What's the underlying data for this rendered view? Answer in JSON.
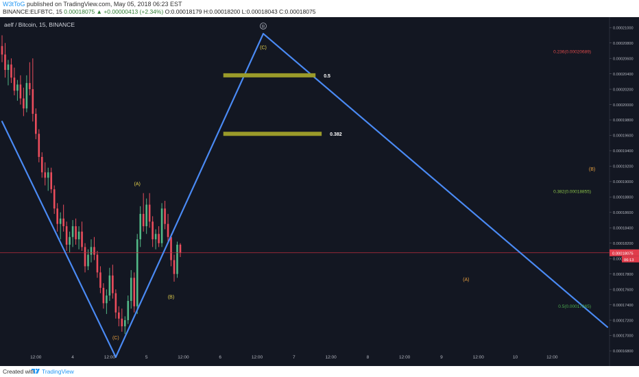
{
  "header": {
    "author": "W3tToG",
    "publish_text": " published on TradingView.com, May 05, 2018 06:23 EST",
    "symbol_line": "BINANCE:ELFBTC, 15  ",
    "change_text": "0.00018075 ▲ +0.00000413 (+2.34%)",
    "ohlc_text": " O:0.00018179 H:0.00018200 L:0.00018043 C:0.00018075"
  },
  "chart_title": "aelf / Bitcoin, 15, BINANCE",
  "colors": {
    "background": "#131722",
    "up": "#53b987",
    "down": "#eb4d5c",
    "wave_line": "#4a8af4",
    "fib_bar": "#9a9a2a",
    "price_line": "#c0303e"
  },
  "chart_data": {
    "type": "candlestick",
    "y_axis": {
      "range": [
        0.000168,
        0.000211
      ],
      "tick_labels": [
        "0.00021000",
        "0.00020800",
        "0.00020600",
        "0.00020400",
        "0.00020200",
        "0.00020000",
        "0.00019800",
        "0.00019600",
        "0.00019400",
        "0.00019200",
        "0.00019000",
        "0.00018800",
        "0.00018600",
        "0.00018400",
        "0.00018200",
        "0.00018000",
        "0.00017800",
        "0.00017600",
        "0.00017400",
        "0.00017200",
        "0.00017000",
        "0.00016800"
      ],
      "tick_values": [
        0.00021,
        0.000208,
        0.000206,
        0.000204,
        0.000202,
        0.0002,
        0.000198,
        0.000196,
        0.000194,
        0.000192,
        0.00019,
        0.000188,
        0.000186,
        0.000184,
        0.000182,
        0.00018,
        0.000178,
        0.000176,
        0.000174,
        0.000172,
        0.00017,
        0.000168
      ]
    },
    "x_axis": {
      "tick_labels": [
        "12:00",
        "4",
        "12:00",
        "5",
        "12:00",
        "6",
        "12:00",
        "7",
        "12:00",
        "8",
        "12:00",
        "9",
        "12:00",
        "10",
        "12:00"
      ],
      "tick_times_hours": [
        12,
        24,
        36,
        48,
        60,
        72,
        84,
        96,
        108,
        120,
        132,
        144,
        156,
        168,
        180
      ],
      "range_hours": [
        1,
        198
      ]
    },
    "candles": [
      {
        "t": 1,
        "o": 0.0002076,
        "h": 0.000209,
        "l": 0.0002055,
        "c": 0.0002065
      },
      {
        "t": 2,
        "o": 0.0002065,
        "h": 0.000208,
        "l": 0.0002035,
        "c": 0.0002045
      },
      {
        "t": 3,
        "o": 0.0002045,
        "h": 0.0002058,
        "l": 0.0002025,
        "c": 0.0002052
      },
      {
        "t": 4,
        "o": 0.0002052,
        "h": 0.000206,
        "l": 0.0002028,
        "c": 0.0002035
      },
      {
        "t": 5,
        "o": 0.0002035,
        "h": 0.0002048,
        "l": 0.0002012,
        "c": 0.0002018
      },
      {
        "t": 6,
        "o": 0.0002018,
        "h": 0.0002032,
        "l": 0.0002005,
        "c": 0.0002026
      },
      {
        "t": 7,
        "o": 0.0002026,
        "h": 0.0002038,
        "l": 0.0002,
        "c": 0.0002008
      },
      {
        "t": 8,
        "o": 0.0002008,
        "h": 0.0002022,
        "l": 0.0001985,
        "c": 0.0001995
      },
      {
        "t": 9,
        "o": 0.0001995,
        "h": 0.0002038,
        "l": 0.000199,
        "c": 0.0002028
      },
      {
        "t": 10,
        "o": 0.0002028,
        "h": 0.0002055,
        "l": 0.0002012,
        "c": 0.000202
      },
      {
        "t": 11,
        "o": 0.000202,
        "h": 0.000206,
        "l": 0.0001978,
        "c": 0.0001988
      },
      {
        "t": 12,
        "o": 0.0001988,
        "h": 0.0001995,
        "l": 0.0001955,
        "c": 0.0001962
      },
      {
        "t": 13,
        "o": 0.0001962,
        "h": 0.0001968,
        "l": 0.0001925,
        "c": 0.0001932
      },
      {
        "t": 14,
        "o": 0.0001932,
        "h": 0.0001938,
        "l": 0.0001905,
        "c": 0.0001912
      },
      {
        "t": 15,
        "o": 0.0001912,
        "h": 0.0001925,
        "l": 0.0001895,
        "c": 0.0001905
      },
      {
        "t": 16,
        "o": 0.0001905,
        "h": 0.0001918,
        "l": 0.0001888,
        "c": 0.0001912
      },
      {
        "t": 17,
        "o": 0.0001912,
        "h": 0.0001918,
        "l": 0.0001885,
        "c": 0.000189
      },
      {
        "t": 18,
        "o": 0.000189,
        "h": 0.0001895,
        "l": 0.0001858,
        "c": 0.0001865
      },
      {
        "t": 19,
        "o": 0.0001865,
        "h": 0.0001872,
        "l": 0.0001835,
        "c": 0.0001845
      },
      {
        "t": 20,
        "o": 0.0001845,
        "h": 0.000186,
        "l": 0.0001825,
        "c": 0.0001852
      },
      {
        "t": 21,
        "o": 0.0001852,
        "h": 0.000187,
        "l": 0.0001835,
        "c": 0.0001842
      },
      {
        "t": 22,
        "o": 0.0001842,
        "h": 0.0001848,
        "l": 0.000181,
        "c": 0.0001818
      },
      {
        "t": 23,
        "o": 0.0001818,
        "h": 0.0001835,
        "l": 0.0001808,
        "c": 0.0001828
      },
      {
        "t": 24,
        "o": 0.0001828,
        "h": 0.000185,
        "l": 0.0001815,
        "c": 0.0001842
      },
      {
        "t": 25,
        "o": 0.0001842,
        "h": 0.0001852,
        "l": 0.0001818,
        "c": 0.0001825
      },
      {
        "t": 26,
        "o": 0.0001825,
        "h": 0.0001842,
        "l": 0.0001812,
        "c": 0.0001835
      },
      {
        "t": 27,
        "o": 0.0001835,
        "h": 0.0001848,
        "l": 0.000181,
        "c": 0.0001815
      },
      {
        "t": 28,
        "o": 0.0001815,
        "h": 0.000182,
        "l": 0.0001782,
        "c": 0.000179
      },
      {
        "t": 29,
        "o": 0.000179,
        "h": 0.0001812,
        "l": 0.0001785,
        "c": 0.0001805
      },
      {
        "t": 30,
        "o": 0.0001805,
        "h": 0.0001825,
        "l": 0.0001795,
        "c": 0.0001815
      },
      {
        "t": 31,
        "o": 0.0001815,
        "h": 0.0001828,
        "l": 0.0001798,
        "c": 0.0001805
      },
      {
        "t": 32,
        "o": 0.0001805,
        "h": 0.000181,
        "l": 0.0001775,
        "c": 0.0001782
      },
      {
        "t": 33,
        "o": 0.0001782,
        "h": 0.000179,
        "l": 0.0001755,
        "c": 0.0001762
      },
      {
        "t": 34,
        "o": 0.0001762,
        "h": 0.0001768,
        "l": 0.0001735,
        "c": 0.0001742
      },
      {
        "t": 35,
        "o": 0.0001742,
        "h": 0.000176,
        "l": 0.0001728,
        "c": 0.0001752
      },
      {
        "t": 36,
        "o": 0.0001752,
        "h": 0.0001788,
        "l": 0.0001745,
        "c": 0.0001778
      },
      {
        "t": 37,
        "o": 0.0001778,
        "h": 0.0001792,
        "l": 0.0001748,
        "c": 0.0001755
      },
      {
        "t": 38,
        "o": 0.0001755,
        "h": 0.000176,
        "l": 0.0001722,
        "c": 0.000173
      },
      {
        "t": 39,
        "o": 0.000173,
        "h": 0.0001738,
        "l": 0.0001712,
        "c": 0.0001722
      },
      {
        "t": 40,
        "o": 0.0001722,
        "h": 0.0001735,
        "l": 0.0001705,
        "c": 0.0001712
      },
      {
        "t": 41,
        "o": 0.0001712,
        "h": 0.0001725,
        "l": 0.0001702,
        "c": 0.000172
      },
      {
        "t": 42,
        "o": 0.000172,
        "h": 0.0001752,
        "l": 0.0001715,
        "c": 0.0001745
      },
      {
        "t": 43,
        "o": 0.0001745,
        "h": 0.0001785,
        "l": 0.0001735,
        "c": 0.0001775
      },
      {
        "t": 44,
        "o": 0.0001775,
        "h": 0.0001782,
        "l": 0.000173,
        "c": 0.0001738
      },
      {
        "t": 45,
        "o": 0.0001738,
        "h": 0.0001832,
        "l": 0.0001728,
        "c": 0.0001825
      },
      {
        "t": 46,
        "o": 0.0001825,
        "h": 0.0001868,
        "l": 0.0001815,
        "c": 0.0001858
      },
      {
        "t": 47,
        "o": 0.0001858,
        "h": 0.0001885,
        "l": 0.0001835,
        "c": 0.0001842
      },
      {
        "t": 48,
        "o": 0.0001842,
        "h": 0.0001878,
        "l": 0.0001832,
        "c": 0.000187
      },
      {
        "t": 49,
        "o": 0.000187,
        "h": 0.0001885,
        "l": 0.000184,
        "c": 0.0001848
      },
      {
        "t": 50,
        "o": 0.0001848,
        "h": 0.0001855,
        "l": 0.0001815,
        "c": 0.0001825
      },
      {
        "t": 51,
        "o": 0.0001825,
        "h": 0.0001838,
        "l": 0.0001812,
        "c": 0.0001832
      },
      {
        "t": 52,
        "o": 0.0001832,
        "h": 0.0001842,
        "l": 0.0001815,
        "c": 0.000182
      },
      {
        "t": 53,
        "o": 0.000182,
        "h": 0.0001872,
        "l": 0.0001815,
        "c": 0.0001865
      },
      {
        "t": 54,
        "o": 0.0001865,
        "h": 0.0001875,
        "l": 0.0001838,
        "c": 0.0001845
      },
      {
        "t": 55,
        "o": 0.0001845,
        "h": 0.0001858,
        "l": 0.000182,
        "c": 0.0001828
      },
      {
        "t": 56,
        "o": 0.0001828,
        "h": 0.0001832,
        "l": 0.000179,
        "c": 0.0001798
      },
      {
        "t": 57,
        "o": 0.0001798,
        "h": 0.0001805,
        "l": 0.000177,
        "c": 0.000178
      },
      {
        "t": 58,
        "o": 0.000178,
        "h": 0.0001822,
        "l": 0.0001775,
        "c": 0.0001818
      },
      {
        "t": 59,
        "o": 0.0001818,
        "h": 0.000182,
        "l": 0.0001802,
        "c": 0.00018075
      }
    ],
    "current_price": 0.00018075,
    "current_price_label": "0.00018075",
    "countdown_label": "06:13",
    "wave_lines": [
      {
        "from": {
          "t": 1,
          "p": 0.0001978
        },
        "to": {
          "t": 38,
          "p": 0.0001672
        }
      },
      {
        "from": {
          "t": 38,
          "p": 0.0001672
        },
        "to": {
          "t": 86,
          "p": 0.0002092
        }
      },
      {
        "from": {
          "t": 86,
          "p": 0.0002092
        },
        "to": {
          "t": 198,
          "p": 0.0001711
        }
      }
    ],
    "fib_bars": [
      {
        "label": "0.5",
        "p": 0.0002038,
        "t_start": 73,
        "t_end": 103
      },
      {
        "label": "0.382",
        "p": 0.0001962,
        "t_start": 73,
        "t_end": 105
      }
    ],
    "annotations": [
      {
        "text": "(A)",
        "t": 45,
        "p": 0.0001895,
        "color": "#e8d44d"
      },
      {
        "text": "(B)",
        "t": 56,
        "p": 0.0001748,
        "color": "#e8d44d"
      },
      {
        "text": "(C)",
        "t": 38,
        "p": 0.0001695,
        "color": "#e8a040"
      },
      {
        "text": "(C)",
        "t": 86,
        "p": 0.0002072,
        "color": "#e8d44d"
      },
      {
        "text": "(A)",
        "t": 152,
        "p": 0.0001771,
        "color": "#e8a040"
      },
      {
        "text": "(B)",
        "t": 193,
        "p": 0.0001914,
        "color": "#e8a040"
      }
    ],
    "wave_marker": {
      "text": "B",
      "t": 86,
      "p": 0.0002102
    },
    "fib_targets": [
      {
        "text": "0.236(0.00020689)",
        "p": 0.0002067,
        "color": "#e04b4b"
      },
      {
        "text": "0.382(0.00018855)",
        "p": 0.0001885,
        "color": "#8bc34a"
      },
      {
        "text": "0.5(0.00017365)",
        "p": 0.0001736,
        "color": "#4caf50"
      }
    ]
  },
  "footer": {
    "created_text": "Created with",
    "brand_text": "TradingView"
  }
}
